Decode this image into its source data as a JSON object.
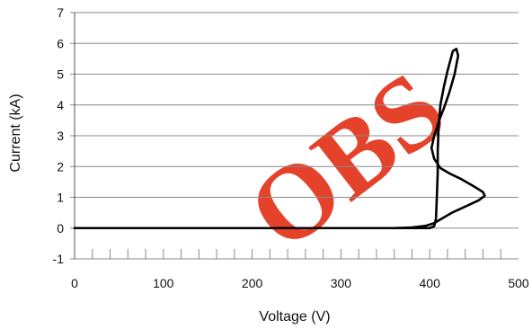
{
  "chart_data": {
    "type": "line",
    "xlabel": "Voltage (V)",
    "ylabel": "Current (kA)",
    "xlim": [
      0,
      500
    ],
    "ylim": [
      -1,
      7
    ],
    "x_ticks": [
      "0",
      "100",
      "200",
      "300",
      "400",
      "500"
    ],
    "y_ticks": [
      "7",
      "6",
      "5",
      "4",
      "3",
      "2",
      "1",
      "0",
      "-1"
    ],
    "x_minor_step": 20,
    "grid": "horizontal",
    "series": [
      {
        "color": "#000000",
        "points": [
          [
            0,
            0.0
          ],
          [
            360,
            0.0
          ],
          [
            380,
            0.02
          ],
          [
            395,
            0.07
          ],
          [
            405,
            0.16
          ],
          [
            412,
            0.28
          ],
          [
            425,
            0.5
          ],
          [
            440,
            0.7
          ],
          [
            455,
            0.9
          ],
          [
            462,
            1.05
          ],
          [
            460,
            1.17
          ],
          [
            450,
            1.35
          ],
          [
            435,
            1.6
          ],
          [
            422,
            1.78
          ],
          [
            412,
            1.95
          ],
          [
            405,
            2.25
          ],
          [
            402,
            2.6
          ],
          [
            405,
            3.0
          ],
          [
            410,
            3.45
          ],
          [
            416,
            3.9
          ],
          [
            422,
            4.4
          ],
          [
            428,
            5.0
          ],
          [
            432,
            5.6
          ],
          [
            430,
            5.82
          ],
          [
            426,
            5.75
          ],
          [
            420,
            5.1
          ],
          [
            416,
            4.6
          ],
          [
            412,
            4.0
          ],
          [
            410,
            3.3
          ],
          [
            409,
            2.5
          ],
          [
            409,
            1.8
          ],
          [
            408,
            1.0
          ],
          [
            407,
            0.3
          ],
          [
            405,
            0.06
          ],
          [
            400,
            0.0
          ],
          [
            385,
            0.0
          ],
          [
            0,
            0.0
          ]
        ]
      }
    ]
  },
  "watermark": {
    "text": "OBS"
  }
}
